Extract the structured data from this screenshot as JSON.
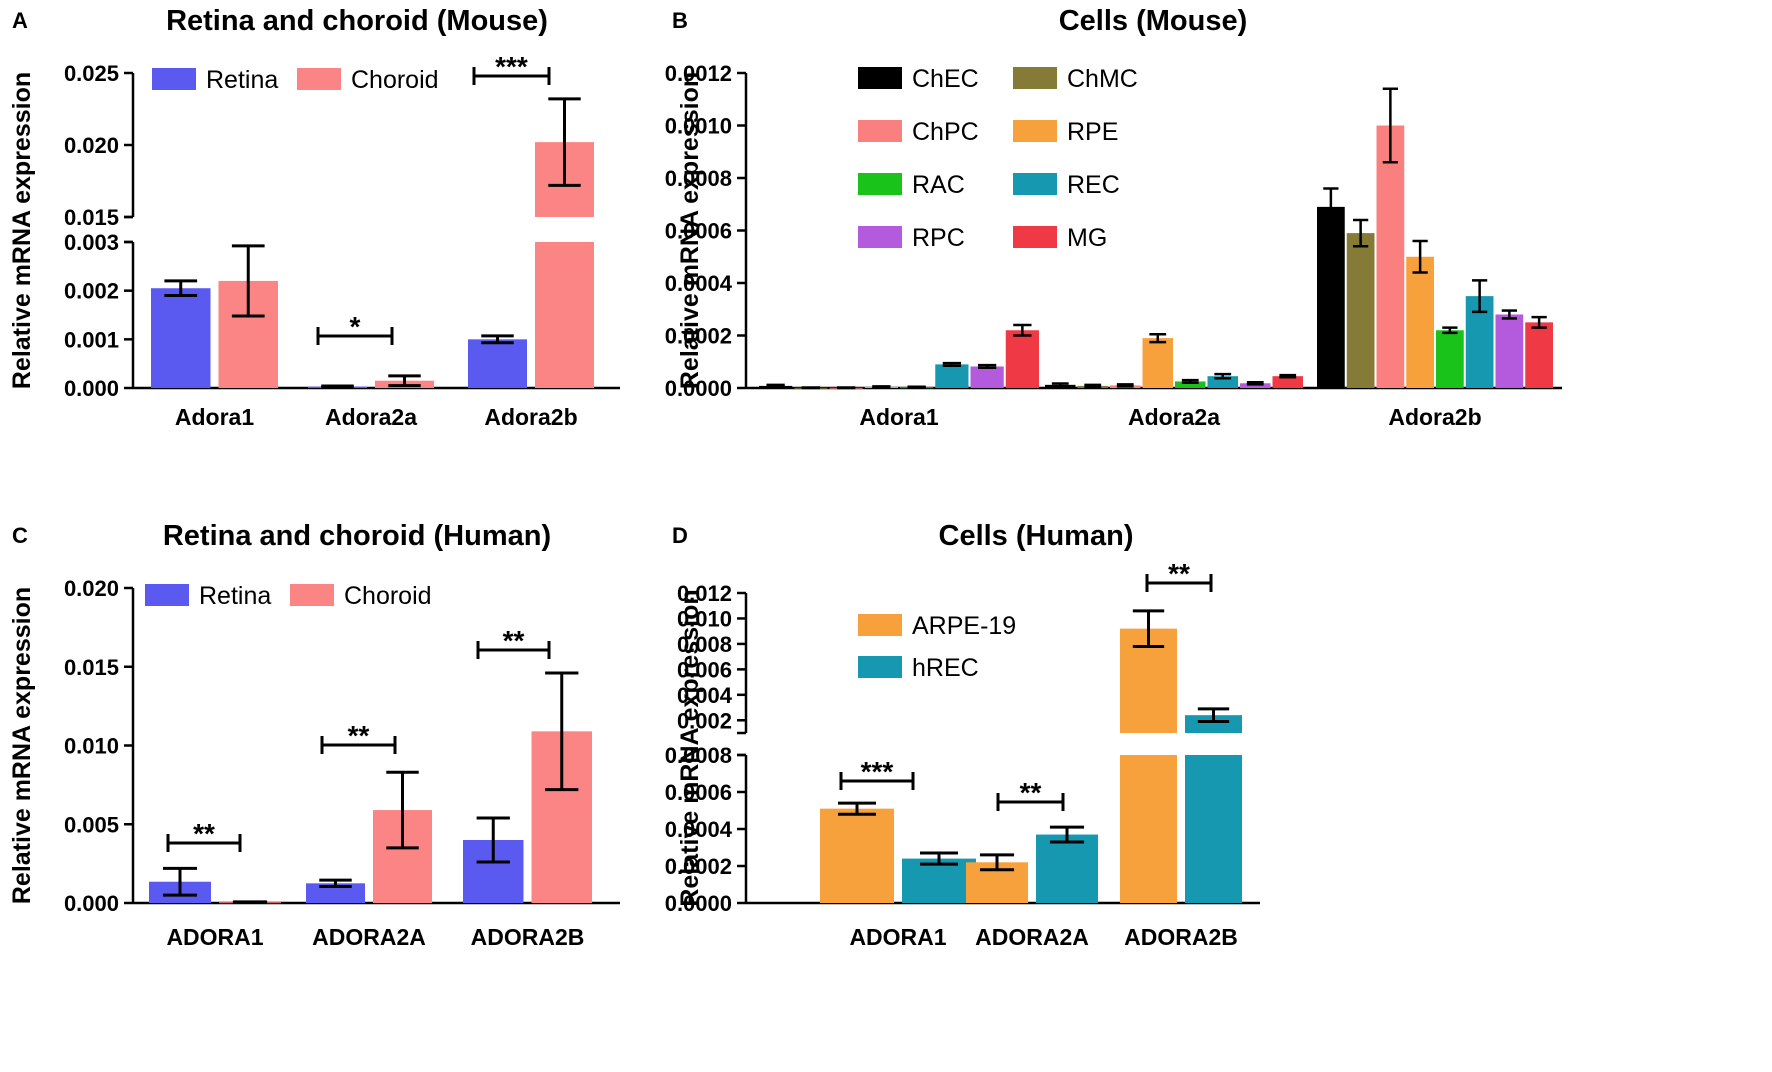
{
  "colors": {
    "Retina": "#5a5af0",
    "Choroid": "#fb8484",
    "ChEC": "#000000",
    "ChMC": "#857a36",
    "ChPC": "#fa8080",
    "RPE": "#f7a13d",
    "RAC": "#19c319",
    "REC": "#1698b1",
    "RPC": "#b45adc",
    "MG": "#ef3a45",
    "ARPE-19": "#f7a13d",
    "hREC": "#1698b1"
  },
  "chart_data": [
    {
      "id": "A",
      "panel_letter": "A",
      "type": "bar",
      "title": "Retina and choroid (Mouse)",
      "ylabel": "Relative mRNA expression",
      "xlabel": "",
      "categories": [
        "Adora1",
        "Adora2a",
        "Adora2b"
      ],
      "series": [
        {
          "name": "Retina",
          "values": [
            0.00205,
            3e-05,
            0.001
          ],
          "errors": [
            0.00015,
            1e-05,
            7e-05
          ]
        },
        {
          "name": "Choroid",
          "values": [
            0.0022,
            0.00015,
            0.0202
          ],
          "errors": [
            0.00072,
            0.0001,
            0.003
          ]
        }
      ],
      "y_break": {
        "lower": [
          0,
          0.003
        ],
        "upper": [
          0.015,
          0.025
        ]
      },
      "yticks_lower": [
        "0.000",
        "0.001",
        "0.002",
        "0.003"
      ],
      "yticks_upper": [
        "0.015",
        "0.020",
        "0.025"
      ],
      "significance": [
        {
          "category_index": 1,
          "label": "*"
        },
        {
          "category_index": 2,
          "label": "***"
        }
      ],
      "legend": [
        "Retina",
        "Choroid"
      ],
      "legend_position": "top-left"
    },
    {
      "id": "B",
      "panel_letter": "B",
      "type": "bar",
      "title": "Cells (Mouse)",
      "ylabel": "Relative mRNA expression",
      "xlabel": "",
      "categories": [
        "Adora1",
        "Adora2a",
        "Adora2b"
      ],
      "series": [
        {
          "name": "ChEC",
          "values": [
            8e-06,
            1.2e-05,
            0.00069
          ],
          "errors": [
            4e-06,
            5e-06,
            7e-05
          ]
        },
        {
          "name": "ChMC",
          "values": [
            1e-06,
            8e-06,
            0.00059
          ],
          "errors": [
            1e-06,
            4e-06,
            5e-05
          ]
        },
        {
          "name": "ChPC",
          "values": [
            1e-06,
            1e-05,
            0.001
          ],
          "errors": [
            1e-06,
            4e-06,
            0.00014
          ]
        },
        {
          "name": "RPE",
          "values": [
            4e-06,
            0.00019,
            0.0005
          ],
          "errors": [
            2e-06,
            1.5e-05,
            6e-05
          ]
        },
        {
          "name": "RAC",
          "values": [
            3e-06,
            2.5e-05,
            0.00022
          ],
          "errors": [
            2e-06,
            5e-06,
            1e-05
          ]
        },
        {
          "name": "REC",
          "values": [
            9e-05,
            4.5e-05,
            0.00035
          ],
          "errors": [
            5e-06,
            8e-06,
            6e-05
          ]
        },
        {
          "name": "RPC",
          "values": [
            8.2e-05,
            1.8e-05,
            0.00028
          ],
          "errors": [
            5e-06,
            4e-06,
            1.5e-05
          ]
        },
        {
          "name": "MG",
          "values": [
            0.00022,
            4.5e-05,
            0.00025
          ],
          "errors": [
            2e-05,
            4e-06,
            2e-05
          ]
        }
      ],
      "ylim": [
        0,
        0.0012
      ],
      "yticks": [
        "0.0000",
        "0.0002",
        "0.0004",
        "0.0006",
        "0.0008",
        "0.0010",
        "0.0012"
      ],
      "legend": [
        "ChEC",
        "ChMC",
        "ChPC",
        "RPE",
        "RAC",
        "REC",
        "RPC",
        "MG"
      ],
      "legend_position": "top-left"
    },
    {
      "id": "C",
      "panel_letter": "C",
      "type": "bar",
      "title": "Retina and choroid (Human)",
      "ylabel": "Relative mRNA expression",
      "xlabel": "",
      "categories": [
        "ADORA1",
        "ADORA2A",
        "ADORA2B"
      ],
      "series": [
        {
          "name": "Retina",
          "values": [
            0.00135,
            0.00125,
            0.004
          ],
          "errors": [
            0.00085,
            0.0002,
            0.0014
          ]
        },
        {
          "name": "Choroid",
          "values": [
            5e-05,
            0.0059,
            0.0109
          ],
          "errors": [
            2e-05,
            0.0024,
            0.0037
          ]
        }
      ],
      "ylim": [
        0,
        0.02
      ],
      "yticks": [
        "0.000",
        "0.005",
        "0.010",
        "0.015",
        "0.020"
      ],
      "significance": [
        {
          "category_index": 0,
          "label": "**"
        },
        {
          "category_index": 1,
          "label": "**"
        },
        {
          "category_index": 2,
          "label": "**"
        }
      ],
      "legend": [
        "Retina",
        "Choroid"
      ],
      "legend_position": "top-left"
    },
    {
      "id": "D",
      "panel_letter": "D",
      "type": "bar",
      "title": "Cells (Human)",
      "ylabel": "Relative mRNA expression",
      "xlabel": "",
      "categories": [
        "ADORA1",
        "ADORA2A",
        "ADORA2B"
      ],
      "series": [
        {
          "name": "ARPE-19",
          "values": [
            0.00051,
            0.00022,
            0.0092
          ],
          "errors": [
            3e-05,
            4e-05,
            0.0014
          ]
        },
        {
          "name": "hREC",
          "values": [
            0.00024,
            0.00037,
            0.0024
          ],
          "errors": [
            3e-05,
            4e-05,
            0.0005
          ]
        }
      ],
      "y_break": {
        "lower": [
          0,
          0.0008
        ],
        "upper": [
          0.001,
          0.012
        ]
      },
      "yticks_lower": [
        "0.0000",
        "0.0002",
        "0.0004",
        "0.0006",
        "0.0008"
      ],
      "yticks_upper": [
        "0.002",
        "0.004",
        "0.006",
        "0.008",
        "0.010",
        "0.012"
      ],
      "significance": [
        {
          "category_index": 0,
          "label": "***"
        },
        {
          "category_index": 1,
          "label": "**"
        },
        {
          "category_index": 2,
          "label": "**"
        }
      ],
      "legend": [
        "ARPE-19",
        "hREC"
      ],
      "legend_position": "top-left"
    }
  ]
}
